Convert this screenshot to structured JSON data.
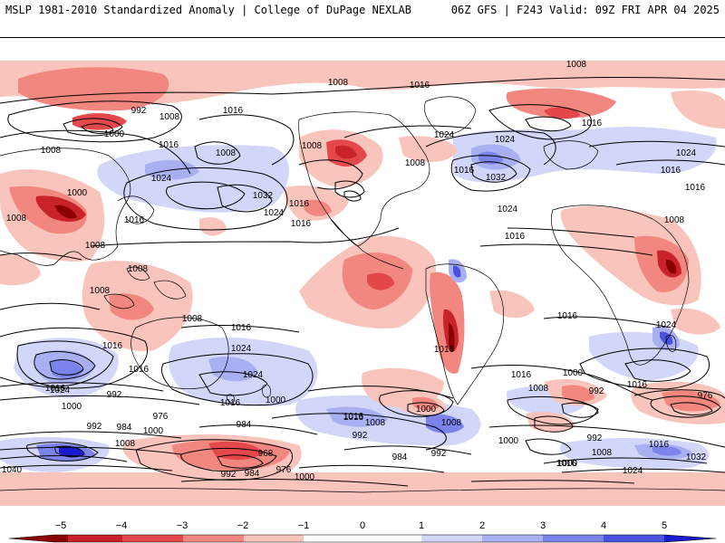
{
  "header": {
    "left_title": "MSLP 1981-2010 Standardized Anomaly | College of DuPage NEXLAB",
    "right_title": "06Z GFS | F243 Valid: 09Z FRI APR 04 2025"
  },
  "colors": {
    "neg5": "#8b0000",
    "neg4": "#c8232a",
    "neg3": "#e5484a",
    "neg2": "#f2877f",
    "neg1": "#f9c4bc",
    "pos1": "#d2d6f8",
    "pos2": "#a9b0f2",
    "pos3": "#7c84ec",
    "pos4": "#4a52e0",
    "pos5": "#1a1ad0"
  },
  "colorbar": {
    "ticks": [
      "−5",
      "−4",
      "−3",
      "−2",
      "−1",
      "0",
      "1",
      "2",
      "3",
      "4",
      "5"
    ]
  },
  "isobar_labels": [
    "1008",
    "992",
    "1008",
    "1016",
    "1000",
    "1008",
    "1016",
    "1008",
    "1024",
    "1016",
    "1024",
    "1032",
    "1016",
    "1008",
    "1008",
    "1000",
    "1008",
    "1016",
    "1024",
    "1016",
    "1016",
    "1016",
    "1008",
    "1008",
    "1008",
    "1008",
    "1008",
    "1016",
    "1016",
    "1024",
    "1024",
    "1032",
    "1024",
    "1016",
    "1008",
    "1024",
    "1016",
    "1016",
    "1016",
    "1024",
    "1016",
    "1024",
    "1016",
    "1016",
    "1016",
    "1016",
    "1000",
    "992",
    "1016",
    "1008",
    "1000",
    "992",
    "1016",
    "976",
    "1024",
    "1016",
    "1000",
    "984",
    "976",
    "992",
    "984",
    "1008",
    "1000",
    "1008",
    "992",
    "968",
    "1000",
    "984",
    "992",
    "976",
    "992",
    "984",
    "992",
    "1000",
    "1000",
    "1016",
    "1024",
    "1032",
    "1040",
    "1008",
    "1016",
    "1000",
    "1008"
  ]
}
